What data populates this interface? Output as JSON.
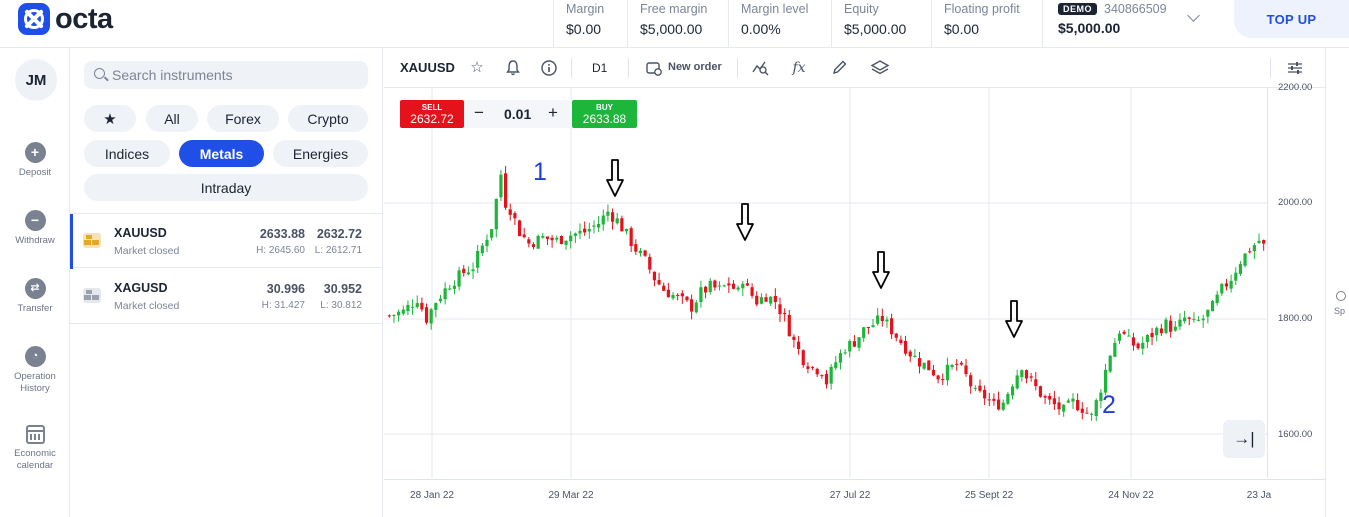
{
  "brand": {
    "name": "octa"
  },
  "header": {
    "stats": [
      {
        "label": "Margin",
        "value": "$0.00"
      },
      {
        "label": "Free margin",
        "value": "$5,000.00"
      },
      {
        "label": "Margin level",
        "value": "0.00%"
      },
      {
        "label": "Equity",
        "value": "$5,000.00"
      },
      {
        "label": "Floating profit",
        "value": "$0.00"
      }
    ],
    "account": {
      "badge": "DEMO",
      "number": "340866509",
      "balance": "$5,000.00"
    },
    "topup_label": "TOP UP"
  },
  "user": {
    "initials": "JM"
  },
  "nav": [
    {
      "label": "Deposit",
      "icon": "plus-circle-icon"
    },
    {
      "label": "Withdraw",
      "icon": "minus-circle-icon"
    },
    {
      "label": "Transfer",
      "icon": "transfer-icon"
    },
    {
      "label": "Operation History",
      "icon": "clock-icon"
    },
    {
      "label": "Economic calendar",
      "icon": "calendar-icon"
    }
  ],
  "search": {
    "placeholder": "Search instruments"
  },
  "filters": {
    "favorites_icon": "star-icon",
    "items": [
      "All",
      "Forex",
      "Crypto",
      "Indices",
      "Metals",
      "Energies",
      "Intraday"
    ],
    "active": "Metals"
  },
  "instruments": [
    {
      "symbol": "XAUUSD",
      "status": "Market closed",
      "buy": "2633.88",
      "sell": "2632.72",
      "high": "H: 2645.60",
      "low": "L: 2612.71",
      "color": "#e3a72f"
    },
    {
      "symbol": "XAGUSD",
      "status": "Market closed",
      "buy": "30.996",
      "sell": "30.952",
      "high": "H: 31.427",
      "low": "L: 30.812",
      "color": "#9aa1ad"
    }
  ],
  "chart": {
    "symbol": "XAUUSD",
    "timeframe": "D1",
    "new_order_label": "New order",
    "sell": {
      "label": "SELL",
      "price": "2632.72"
    },
    "buy": {
      "label": "BUY",
      "price": "2633.88"
    },
    "quantity": "0.01",
    "y_ticks": [
      "2200.00",
      "2000.00",
      "1800.00",
      "1600.00"
    ],
    "x_ticks": [
      "28 Jan 22",
      "29 Mar 22",
      "27 Jul 22",
      "25 Sept 22",
      "24 Nov 22",
      "23 Ja"
    ],
    "annotations": [
      "1",
      "2"
    ],
    "right_strip_label": "Sp"
  },
  "chart_data": {
    "type": "candlestick",
    "ylim": [
      1600,
      2200
    ],
    "price_path": [
      [
        0,
        1805
      ],
      [
        3,
        1812
      ],
      [
        6,
        1835
      ],
      [
        8,
        1800
      ],
      [
        10,
        1830
      ],
      [
        13,
        1860
      ],
      [
        16,
        1880
      ],
      [
        18,
        1890
      ],
      [
        20,
        1925
      ],
      [
        22,
        1960
      ],
      [
        24,
        2050
      ],
      [
        25,
        2000
      ],
      [
        26,
        1990
      ],
      [
        28,
        1950
      ],
      [
        30,
        1930
      ],
      [
        33,
        1940
      ],
      [
        36,
        1935
      ],
      [
        39,
        1945
      ],
      [
        42,
        1950
      ],
      [
        45,
        1965
      ],
      [
        47,
        1985
      ],
      [
        49,
        1970
      ],
      [
        51,
        1945
      ],
      [
        53,
        1920
      ],
      [
        55,
        1900
      ],
      [
        57,
        1870
      ],
      [
        59,
        1850
      ],
      [
        61,
        1840
      ],
      [
        63,
        1830
      ],
      [
        65,
        1820
      ],
      [
        67,
        1845
      ],
      [
        69,
        1855
      ],
      [
        71,
        1850
      ],
      [
        73,
        1860
      ],
      [
        75,
        1845
      ],
      [
        76,
        1870
      ],
      [
        77,
        1850
      ],
      [
        79,
        1830
      ],
      [
        81,
        1840
      ],
      [
        83,
        1830
      ],
      [
        85,
        1800
      ],
      [
        87,
        1760
      ],
      [
        89,
        1730
      ],
      [
        91,
        1715
      ],
      [
        93,
        1710
      ],
      [
        94,
        1690
      ],
      [
        96,
        1725
      ],
      [
        98,
        1750
      ],
      [
        100,
        1760
      ],
      [
        102,
        1780
      ],
      [
        104,
        1790
      ],
      [
        106,
        1800
      ],
      [
        108,
        1780
      ],
      [
        110,
        1760
      ],
      [
        112,
        1740
      ],
      [
        114,
        1725
      ],
      [
        116,
        1715
      ],
      [
        118,
        1700
      ],
      [
        120,
        1710
      ],
      [
        122,
        1720
      ],
      [
        124,
        1700
      ],
      [
        126,
        1670
      ],
      [
        128,
        1665
      ],
      [
        130,
        1650
      ],
      [
        132,
        1655
      ],
      [
        134,
        1690
      ],
      [
        136,
        1720
      ],
      [
        137,
        1700
      ],
      [
        139,
        1680
      ],
      [
        141,
        1660
      ],
      [
        143,
        1650
      ],
      [
        145,
        1640
      ],
      [
        147,
        1655
      ],
      [
        149,
        1645
      ],
      [
        151,
        1630
      ],
      [
        153,
        1680
      ],
      [
        155,
        1740
      ],
      [
        157,
        1780
      ],
      [
        159,
        1760
      ],
      [
        161,
        1750
      ],
      [
        163,
        1765
      ],
      [
        165,
        1780
      ],
      [
        167,
        1790
      ],
      [
        169,
        1780
      ],
      [
        171,
        1800
      ],
      [
        173,
        1790
      ],
      [
        175,
        1800
      ],
      [
        177,
        1820
      ],
      [
        179,
        1850
      ],
      [
        181,
        1870
      ],
      [
        183,
        1900
      ],
      [
        185,
        1920
      ],
      [
        187,
        1935
      ],
      [
        188,
        1925
      ]
    ]
  }
}
